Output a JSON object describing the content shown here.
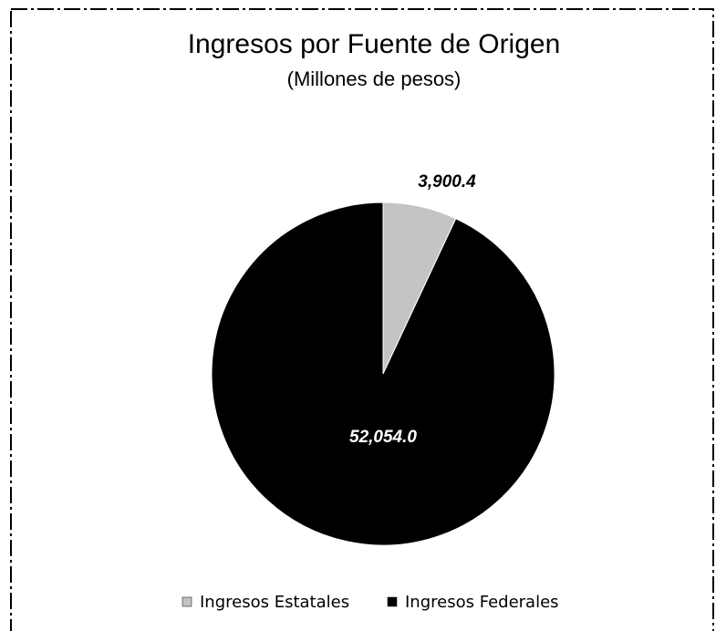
{
  "chart_data": {
    "type": "pie",
    "title": "Ingresos por Fuente de Origen",
    "subtitle": "(Millones de pesos)",
    "categories": [
      "Ingresos Estatales",
      "Ingresos Federales"
    ],
    "values": [
      3900.4,
      52054.0
    ],
    "value_labels": [
      "3,900.4",
      "52,054.0"
    ],
    "colors": [
      "#c4c4c4",
      "#000000"
    ]
  }
}
